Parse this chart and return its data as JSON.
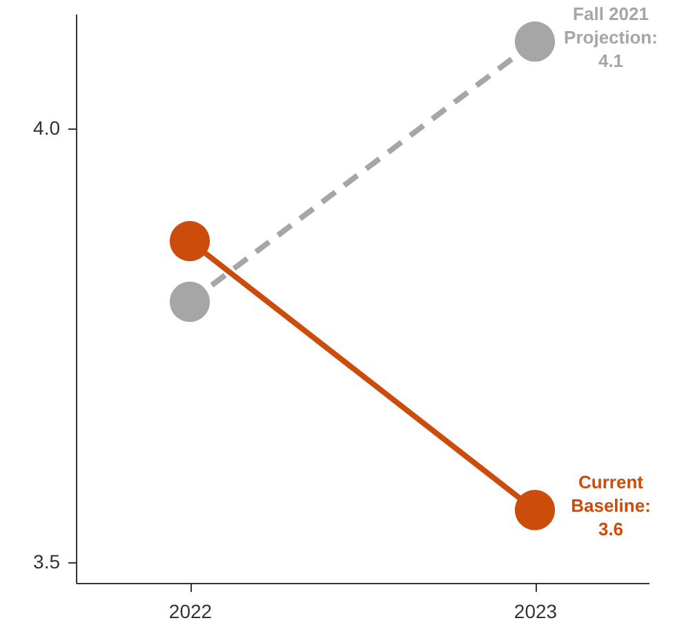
{
  "chart_data": {
    "type": "line",
    "categories": [
      "2022",
      "2023"
    ],
    "ylim": [
      3.476,
      4.132
    ],
    "yticks": [
      3.5,
      {
        "value": 4.0,
        "label": "4.0"
      }
    ],
    "marker": "circle",
    "grid": false,
    "series": [
      {
        "color": "#a6a6a6",
        "line_style": "dashed",
        "values": [
          3.8,
          4.1
        ]
      },
      {
        "color": "#cc4c0c",
        "line_style": "solid",
        "values": [
          3.87,
          3.56
        ]
      }
    ],
    "annotations": [
      {
        "text": "Fall 2021\nProjection:\n4.1",
        "x": "2023",
        "y": 4.1
      },
      {
        "text": "Current\nBaseline:\n3.6",
        "x": "2023",
        "y": 3.56
      }
    ]
  }
}
